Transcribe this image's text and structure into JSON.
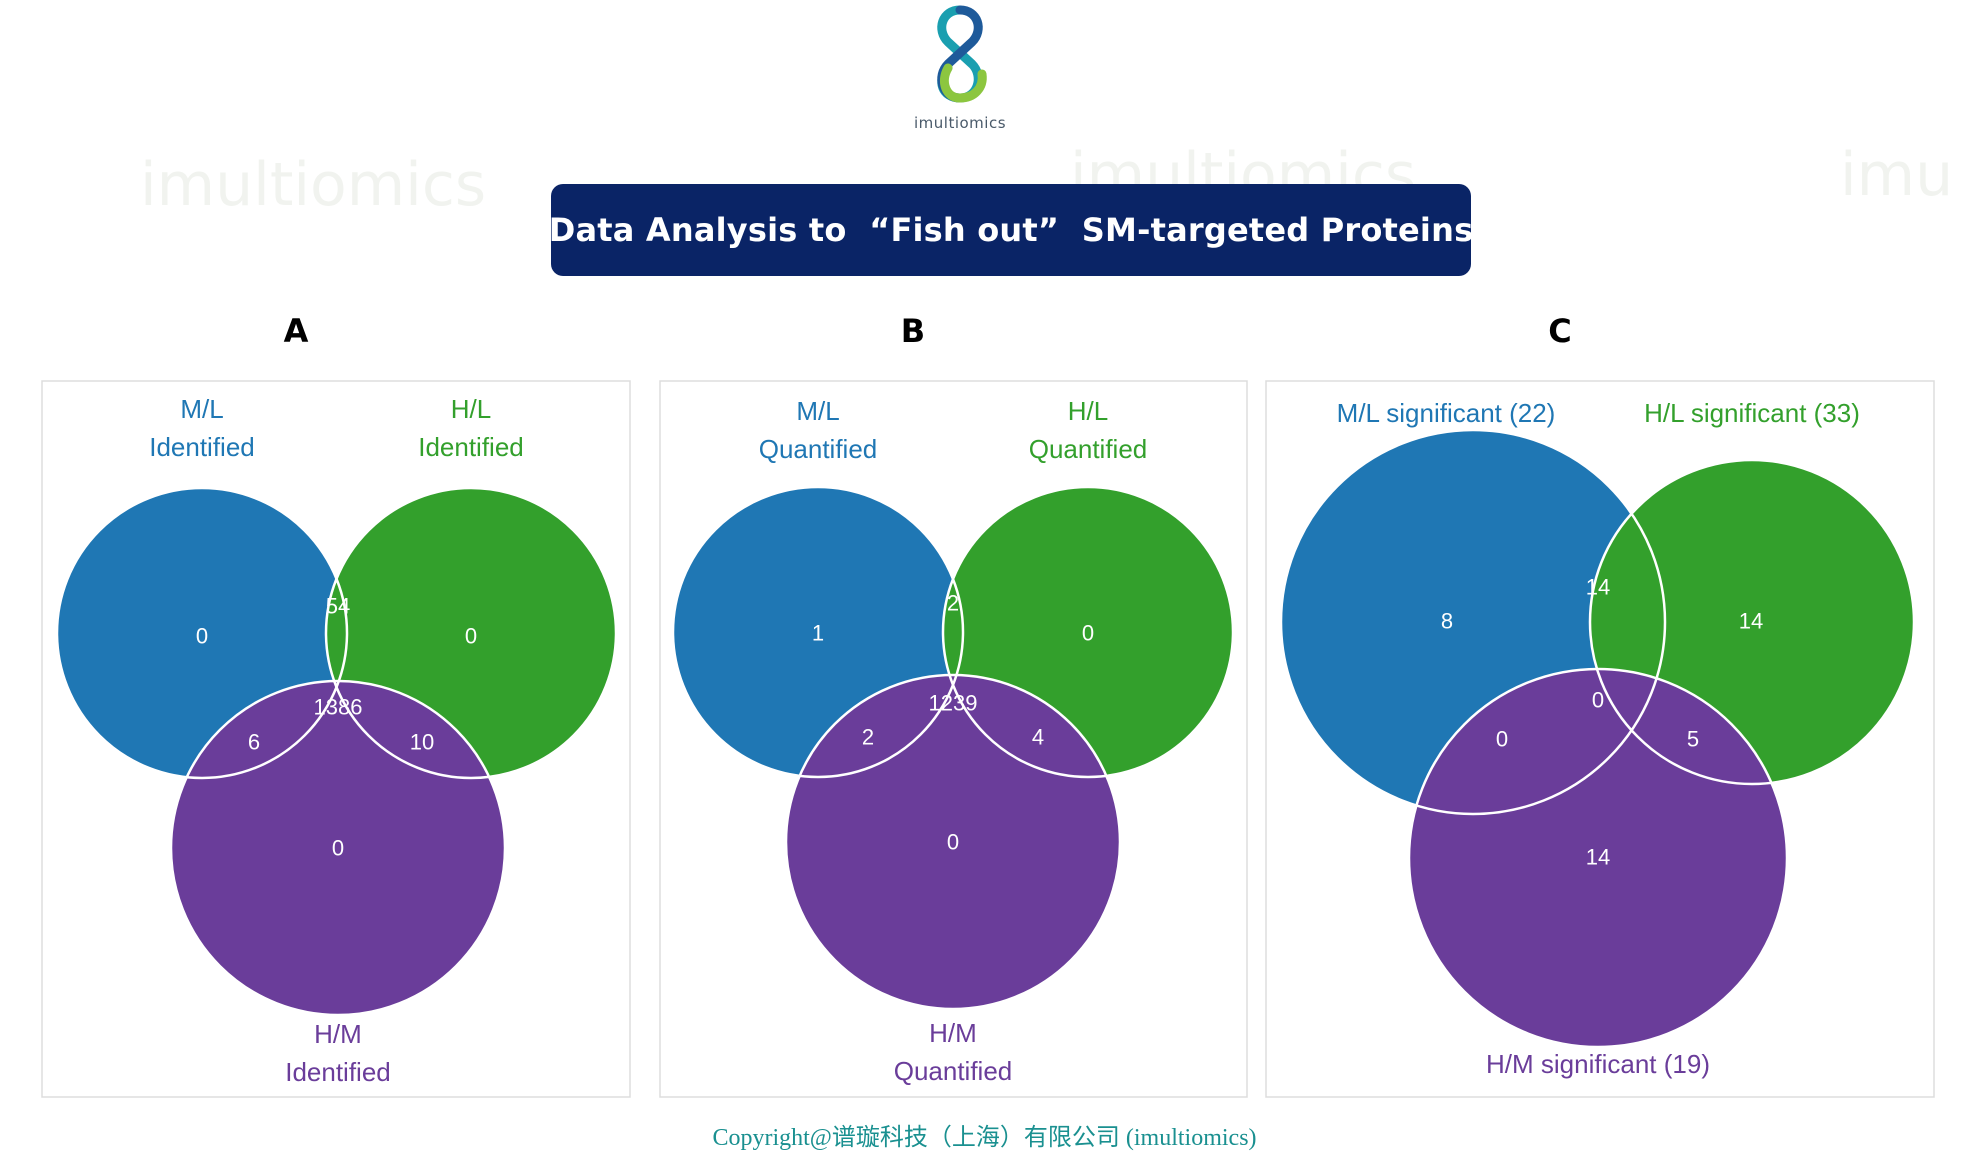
{
  "logo": {
    "text": "imultiomics"
  },
  "title": "Data Analysis to  “Fish out”  SM-targeted Proteins",
  "copyright": "Copyright@谱璇科技（上海）有限公司 (imultiomics)",
  "colors": {
    "blue": "#1f77b4",
    "green": "#33a02c",
    "purple": "#6a3d9a",
    "banner": "#0a2466"
  },
  "panels": [
    {
      "letter": "A",
      "label_top_left": [
        "M/L",
        "Identified"
      ],
      "label_top_right": [
        "H/L",
        "Identified"
      ],
      "label_bottom": [
        "H/M",
        "Identified"
      ],
      "counts": {
        "ml_only": "0",
        "hl_only": "0",
        "hm_only": "0",
        "ml_hl": "54",
        "ml_hm": "6",
        "hl_hm": "10",
        "all": "1386"
      }
    },
    {
      "letter": "B",
      "label_top_left": [
        "M/L",
        "Quantified"
      ],
      "label_top_right": [
        "H/L",
        "Quantified"
      ],
      "label_bottom": [
        "H/M",
        "Quantified"
      ],
      "counts": {
        "ml_only": "1",
        "hl_only": "0",
        "hm_only": "0",
        "ml_hl": "2",
        "ml_hm": "2",
        "hl_hm": "4",
        "all": "1239"
      }
    },
    {
      "letter": "C",
      "label_top_left": [
        "M/L significant (22)"
      ],
      "label_top_right": [
        "H/L significant (33)"
      ],
      "label_bottom": [
        "H/M significant (19)"
      ],
      "counts": {
        "ml_only": "8",
        "hl_only": "14",
        "hm_only": "14",
        "ml_hl": "14",
        "ml_hm": "0",
        "hl_hm": "5",
        "all": "0"
      }
    }
  ]
}
